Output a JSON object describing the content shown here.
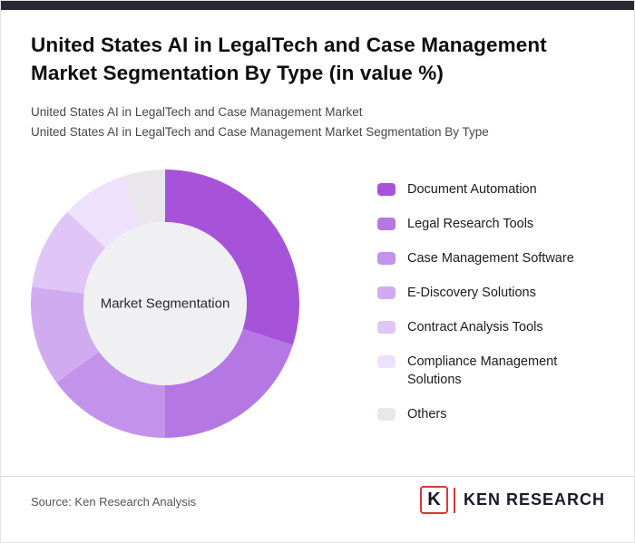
{
  "page": {
    "title": "United States AI in LegalTech and Case Management Market Segmentation By Type (in value %)",
    "subtitle_line1": "United States AI in LegalTech and Case Management Market",
    "subtitle_line2": "United States AI in LegalTech and Case Management Market Segmentation By Type",
    "source_note": "Source: Ken Research Analysis",
    "logo": {
      "letter": "K",
      "text": "KEN RESEARCH"
    }
  },
  "chart_data": {
    "type": "pie",
    "donut": true,
    "title": "United States AI in LegalTech and Case Management Market Segmentation By Type (in value %)",
    "center_label": "Market Segmentation",
    "legend_position": "right",
    "start_angle_deg": 0,
    "values_estimated_from_angles": true,
    "center_fill": "#f0eff1",
    "segments": [
      {
        "label": "Document Automation",
        "value": 30,
        "color": "#a653d9"
      },
      {
        "label": "Legal Research Tools",
        "value": 20,
        "color": "#b577e3"
      },
      {
        "label": "Case Management Software",
        "value": 15,
        "color": "#c392ea"
      },
      {
        "label": "E-Discovery Solutions",
        "value": 12,
        "color": "#d1abf0"
      },
      {
        "label": "Contract Analysis Tools",
        "value": 10,
        "color": "#dfc6f6"
      },
      {
        "label": "Compliance Management Solutions",
        "value": 8,
        "color": "#eee1fb"
      },
      {
        "label": "Others",
        "value": 5,
        "color": "#e9e7eb"
      }
    ]
  }
}
